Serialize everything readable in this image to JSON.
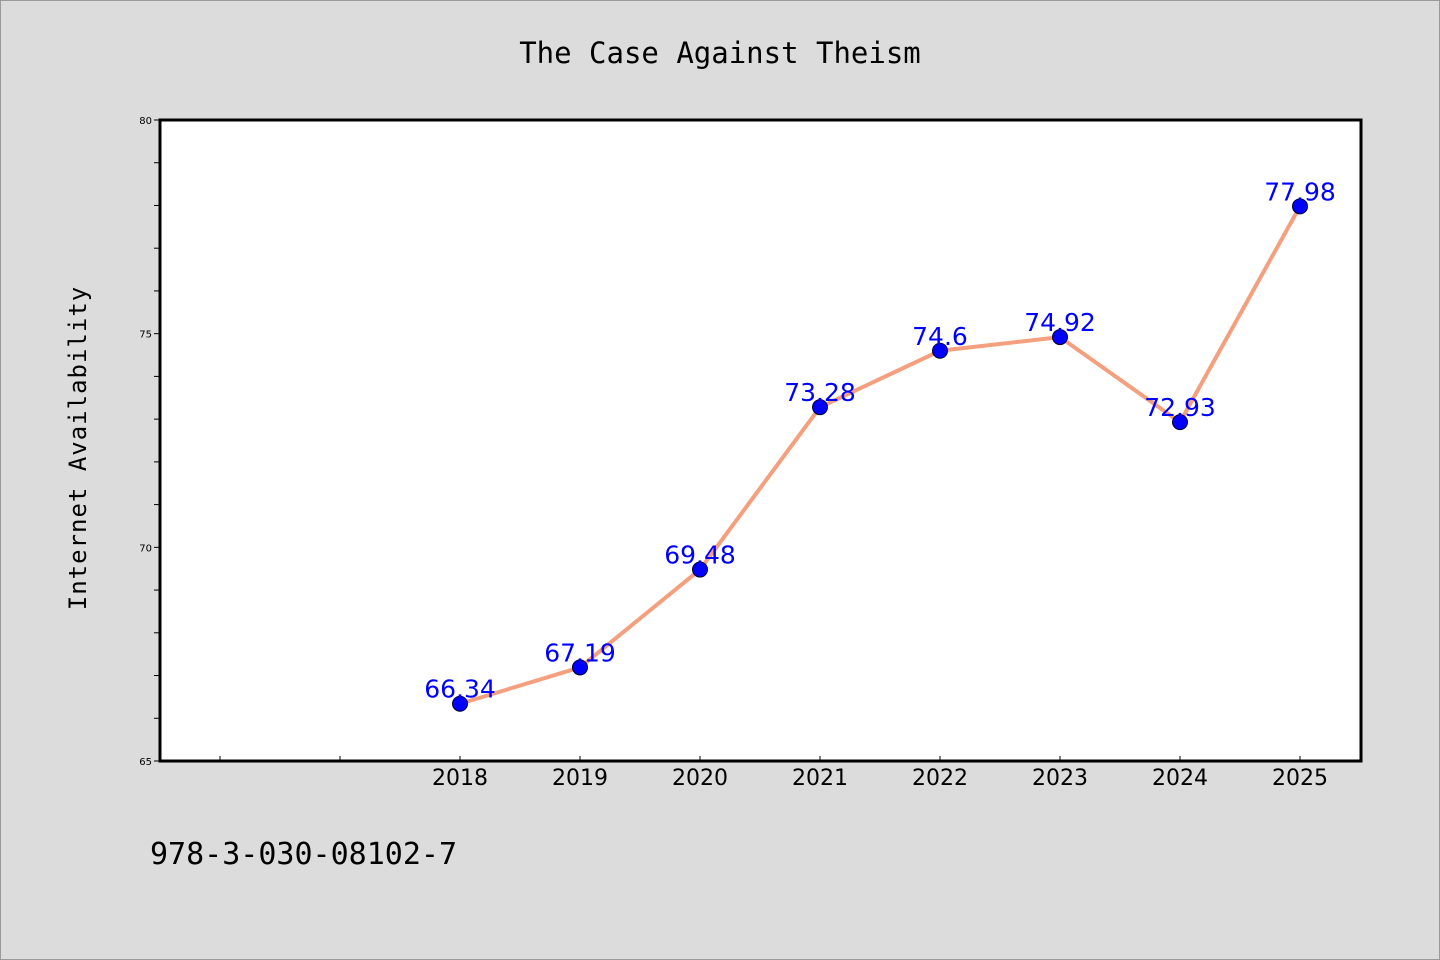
{
  "chart_data": {
    "type": "line",
    "title": "The Case Against Theism",
    "xlabel": "",
    "ylabel": "Internet Availability",
    "categories": [
      "2018",
      "2019",
      "2020",
      "2021",
      "2022",
      "2023",
      "2024",
      "2025"
    ],
    "values": [
      66.34,
      67.19,
      69.48,
      73.28,
      74.6,
      74.92,
      72.93,
      77.98
    ],
    "data_labels": [
      "66.34",
      "67.19",
      "69.48",
      "73.28",
      "74.6",
      "74.92",
      "72.93",
      "77.98"
    ],
    "ylim": [
      65,
      80
    ],
    "yticks": [
      "65",
      "70",
      "75",
      "80"
    ],
    "grid": false,
    "line_color": "#f4a07e",
    "marker_color": "#0000ff",
    "label_color": "#0000ff"
  },
  "footer": {
    "isbn": "978-3-030-08102-7"
  }
}
